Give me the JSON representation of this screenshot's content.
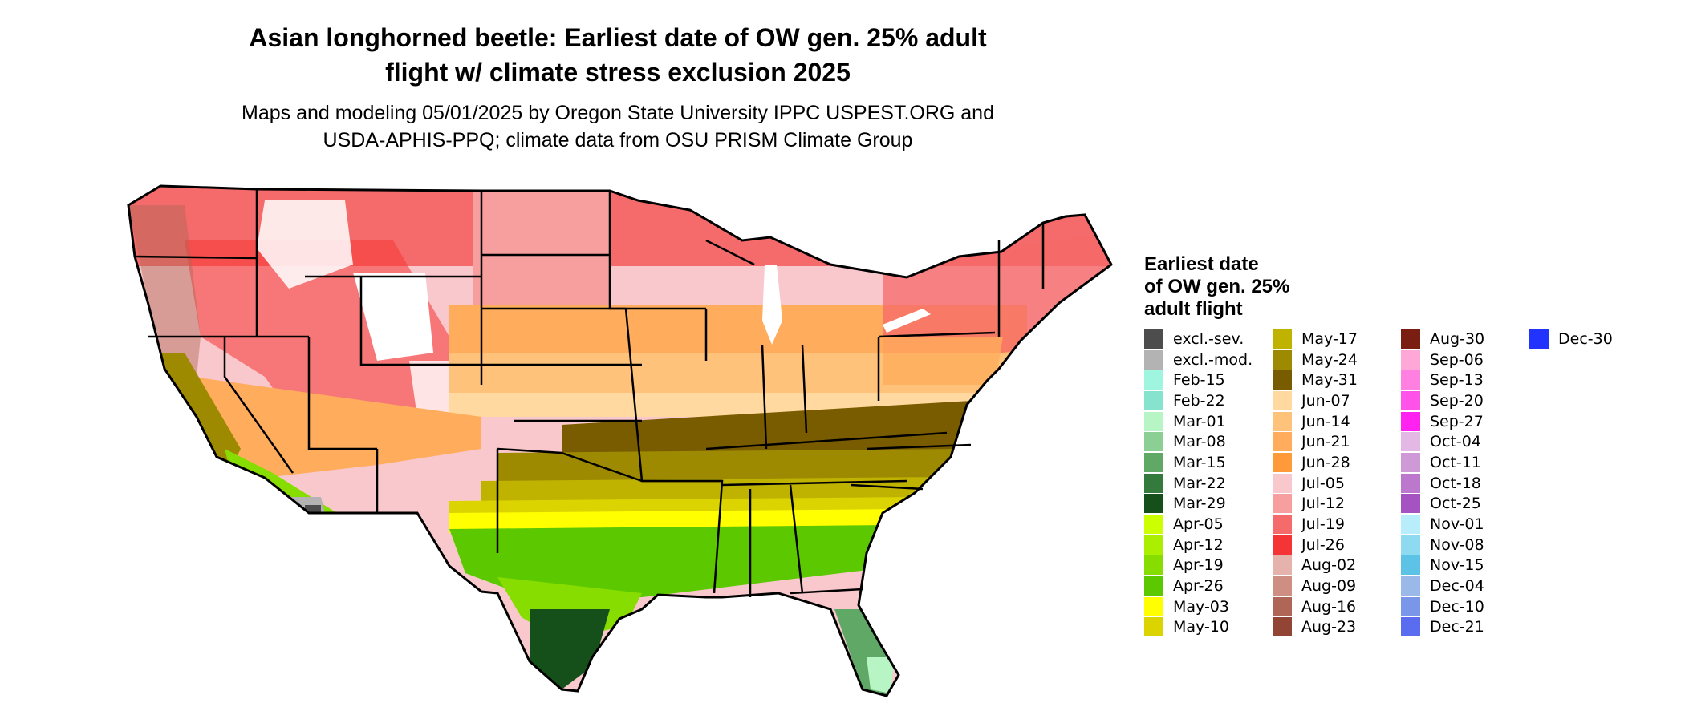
{
  "title_line1": "Asian longhorned beetle: Earliest date of OW gen. 25% adult",
  "title_line2": "flight w/ climate stress exclusion 2025",
  "subtitle_line1": "Maps and modeling 05/01/2025 by Oregon State University IPPC USPEST.ORG and",
  "subtitle_line2": "USDA-APHIS-PPQ; climate data from OSU PRISM Climate Group",
  "legend": {
    "title_line1": "Earliest date",
    "title_line2": "of OW gen. 25%",
    "title_line3": "adult flight",
    "items": [
      {
        "label": "excl.-sev.",
        "color": "#4d4d4d"
      },
      {
        "label": "excl.-mod.",
        "color": "#b3b3b3"
      },
      {
        "label": "Feb-15",
        "color": "#9ff5e0"
      },
      {
        "label": "Feb-22",
        "color": "#86e3cd"
      },
      {
        "label": "Mar-01",
        "color": "#b8f5c4"
      },
      {
        "label": "Mar-08",
        "color": "#8ccf94"
      },
      {
        "label": "Mar-15",
        "color": "#5fa866"
      },
      {
        "label": "Mar-22",
        "color": "#357a3d"
      },
      {
        "label": "Mar-29",
        "color": "#154f1a"
      },
      {
        "label": "Apr-05",
        "color": "#ccff00"
      },
      {
        "label": "Apr-12",
        "color": "#aaee00"
      },
      {
        "label": "Apr-19",
        "color": "#88dd00"
      },
      {
        "label": "Apr-26",
        "color": "#5cc800"
      },
      {
        "label": "May-03",
        "color": "#ffff00"
      },
      {
        "label": "May-10",
        "color": "#dcd400"
      },
      {
        "label": "May-17",
        "color": "#bfb300"
      },
      {
        "label": "May-24",
        "color": "#9e8a00"
      },
      {
        "label": "May-31",
        "color": "#7a5c00"
      },
      {
        "label": "Jun-07",
        "color": "#ffd9a0"
      },
      {
        "label": "Jun-14",
        "color": "#ffc27a"
      },
      {
        "label": "Jun-21",
        "color": "#ffad5c"
      },
      {
        "label": "Jun-28",
        "color": "#ff9a3a"
      },
      {
        "label": "Jul-05",
        "color": "#f9c8cc"
      },
      {
        "label": "Jul-12",
        "color": "#f79e9e"
      },
      {
        "label": "Jul-19",
        "color": "#f56a6a"
      },
      {
        "label": "Jul-26",
        "color": "#f53535"
      },
      {
        "label": "Aug-02",
        "color": "#e5b3ab"
      },
      {
        "label": "Aug-09",
        "color": "#cf8e82"
      },
      {
        "label": "Aug-16",
        "color": "#b06656"
      },
      {
        "label": "Aug-23",
        "color": "#924535"
      },
      {
        "label": "Aug-30",
        "color": "#7a1e12"
      },
      {
        "label": "Sep-06",
        "color": "#ffa8d8"
      },
      {
        "label": "Sep-13",
        "color": "#ff80e0"
      },
      {
        "label": "Sep-20",
        "color": "#ff52e8"
      },
      {
        "label": "Sep-27",
        "color": "#ff22f0"
      },
      {
        "label": "Oct-04",
        "color": "#e3b8e5"
      },
      {
        "label": "Oct-11",
        "color": "#cf98d6"
      },
      {
        "label": "Oct-18",
        "color": "#bb78cc"
      },
      {
        "label": "Oct-25",
        "color": "#a552c2"
      },
      {
        "label": "Nov-01",
        "color": "#b8eefc"
      },
      {
        "label": "Nov-08",
        "color": "#8edaf0"
      },
      {
        "label": "Nov-15",
        "color": "#5cc2e6"
      },
      {
        "label": "Dec-04",
        "color": "#9ab8e8"
      },
      {
        "label": "Dec-10",
        "color": "#7a96e8"
      },
      {
        "label": "Dec-21",
        "color": "#5a6cf0"
      },
      {
        "label": "Dec-30",
        "color": "#2233ff"
      }
    ]
  }
}
